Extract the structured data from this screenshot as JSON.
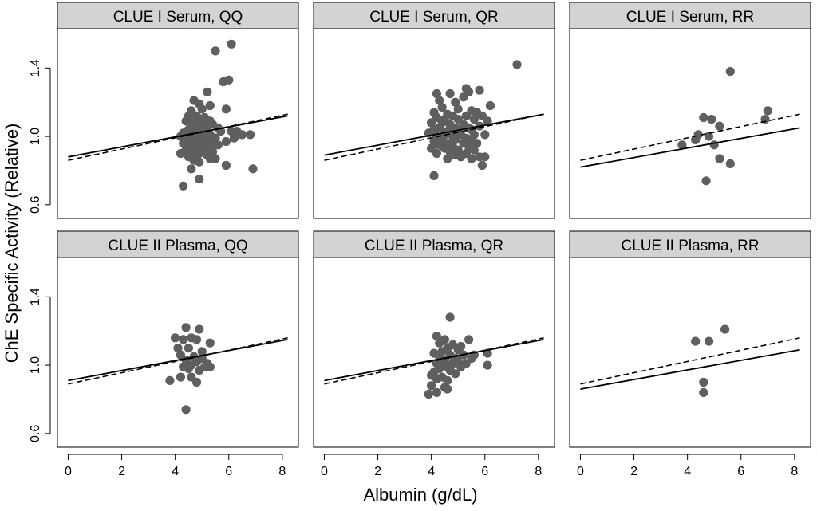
{
  "chart_data": {
    "type": "scatter",
    "xlabel": "Albumin (g/dL)",
    "ylabel": "ChE Specific Activity (Relative)",
    "xlim": [
      -0.4,
      8.6
    ],
    "ylim": [
      0.52,
      1.63
    ],
    "xticks": [
      0,
      2,
      4,
      6,
      8
    ],
    "yticks": [
      0.6,
      1.0,
      1.4
    ],
    "ytick_labels": [
      "0.6",
      "1.0",
      "1.4"
    ],
    "colors": {
      "points": "#5f5f5f",
      "strip": "#d3d3d3",
      "lines": "#000000"
    },
    "legend": "none",
    "panels": [
      {
        "title": "CLUE I Serum, QQ",
        "solid": {
          "x": [
            0,
            8.2
          ],
          "y": [
            0.88,
            1.12
          ]
        },
        "dashed": {
          "x": [
            0,
            8.2
          ],
          "y": [
            0.86,
            1.13
          ]
        },
        "points": [
          [
            5.5,
            1.5
          ],
          [
            6.1,
            1.54
          ],
          [
            5.8,
            1.32
          ],
          [
            6.0,
            1.33
          ],
          [
            5.2,
            1.26
          ],
          [
            4.7,
            1.21
          ],
          [
            4.9,
            1.19
          ],
          [
            5.0,
            1.16
          ],
          [
            4.6,
            1.15
          ],
          [
            5.3,
            1.18
          ],
          [
            5.9,
            1.16
          ],
          [
            4.5,
            1.12
          ],
          [
            4.8,
            1.12
          ],
          [
            5.1,
            1.11
          ],
          [
            5.3,
            1.09
          ],
          [
            4.4,
            1.09
          ],
          [
            4.7,
            1.08
          ],
          [
            5.0,
            1.08
          ],
          [
            5.4,
            1.07
          ],
          [
            4.9,
            1.06
          ],
          [
            5.2,
            1.06
          ],
          [
            4.6,
            1.05
          ],
          [
            4.8,
            1.05
          ],
          [
            5.6,
            1.05
          ],
          [
            4.5,
            1.04
          ],
          [
            4.9,
            1.03
          ],
          [
            5.1,
            1.03
          ],
          [
            5.7,
            1.03
          ],
          [
            6.1,
            1.03
          ],
          [
            6.3,
            1.03
          ],
          [
            4.3,
            1.02
          ],
          [
            4.6,
            1.02
          ],
          [
            4.8,
            1.01
          ],
          [
            5.0,
            1.01
          ],
          [
            5.3,
            1.01
          ],
          [
            6.5,
            1.01
          ],
          [
            6.8,
            1.01
          ],
          [
            4.2,
            1.0
          ],
          [
            4.5,
            1.0
          ],
          [
            4.7,
            1.0
          ],
          [
            5.0,
            0.99
          ],
          [
            5.2,
            0.99
          ],
          [
            5.5,
            0.99
          ],
          [
            6.2,
            0.99
          ],
          [
            4.4,
            0.98
          ],
          [
            4.6,
            0.98
          ],
          [
            4.9,
            0.97
          ],
          [
            5.1,
            0.97
          ],
          [
            5.4,
            0.97
          ],
          [
            5.9,
            0.97
          ],
          [
            4.3,
            0.96
          ],
          [
            4.7,
            0.96
          ],
          [
            5.0,
            0.95
          ],
          [
            5.3,
            0.95
          ],
          [
            5.6,
            0.95
          ],
          [
            4.5,
            0.94
          ],
          [
            4.8,
            0.93
          ],
          [
            5.1,
            0.93
          ],
          [
            4.4,
            0.92
          ],
          [
            4.7,
            0.92
          ],
          [
            5.0,
            0.91
          ],
          [
            5.4,
            0.91
          ],
          [
            4.2,
            0.9
          ],
          [
            4.6,
            0.9
          ],
          [
            4.9,
            0.9
          ],
          [
            5.2,
            0.89
          ],
          [
            4.5,
            0.88
          ],
          [
            4.8,
            0.88
          ],
          [
            5.3,
            0.87
          ],
          [
            4.7,
            0.86
          ],
          [
            5.5,
            0.87
          ],
          [
            4.9,
            0.85
          ],
          [
            5.9,
            0.83
          ],
          [
            4.6,
            0.81
          ],
          [
            6.9,
            0.81
          ],
          [
            4.9,
            0.75
          ],
          [
            4.3,
            0.71
          ]
        ]
      },
      {
        "title": "CLUE I Serum, QR",
        "solid": {
          "x": [
            0,
            8.2
          ],
          "y": [
            0.89,
            1.13
          ]
        },
        "dashed": {
          "x": [
            0,
            8.2
          ],
          "y": [
            0.86,
            1.13
          ]
        },
        "points": [
          [
            7.2,
            1.42
          ],
          [
            5.3,
            1.28
          ],
          [
            5.4,
            1.26
          ],
          [
            5.8,
            1.27
          ],
          [
            4.2,
            1.25
          ],
          [
            4.7,
            1.25
          ],
          [
            5.2,
            1.23
          ],
          [
            4.3,
            1.21
          ],
          [
            4.9,
            1.2
          ],
          [
            6.2,
            1.18
          ],
          [
            4.4,
            1.17
          ],
          [
            5.0,
            1.16
          ],
          [
            5.5,
            1.15
          ],
          [
            5.7,
            1.14
          ],
          [
            4.1,
            1.14
          ],
          [
            4.6,
            1.13
          ],
          [
            4.8,
            1.12
          ],
          [
            5.3,
            1.12
          ],
          [
            5.9,
            1.12
          ],
          [
            4.2,
            1.11
          ],
          [
            4.5,
            1.1
          ],
          [
            5.0,
            1.1
          ],
          [
            5.6,
            1.1
          ],
          [
            6.1,
            1.09
          ],
          [
            4.0,
            1.08
          ],
          [
            4.4,
            1.08
          ],
          [
            4.7,
            1.07
          ],
          [
            5.2,
            1.07
          ],
          [
            5.8,
            1.06
          ],
          [
            4.3,
            1.05
          ],
          [
            4.9,
            1.05
          ],
          [
            5.4,
            1.05
          ],
          [
            5.5,
            1.04
          ],
          [
            4.1,
            1.04
          ],
          [
            4.6,
            1.03
          ],
          [
            5.0,
            1.03
          ],
          [
            3.9,
            1.02
          ],
          [
            4.5,
            1.01
          ],
          [
            5.1,
            1.01
          ],
          [
            5.6,
            1.01
          ],
          [
            6.0,
            1.01
          ],
          [
            4.2,
            1.0
          ],
          [
            4.8,
            1.0
          ],
          [
            5.3,
            0.99
          ],
          [
            4.4,
            0.98
          ],
          [
            4.9,
            0.98
          ],
          [
            5.5,
            0.97
          ],
          [
            4.1,
            0.97
          ],
          [
            4.6,
            0.96
          ],
          [
            5.2,
            0.96
          ],
          [
            5.7,
            0.96
          ],
          [
            4.3,
            0.95
          ],
          [
            4.8,
            0.94
          ],
          [
            5.4,
            0.94
          ],
          [
            4.0,
            0.93
          ],
          [
            4.5,
            0.93
          ],
          [
            5.0,
            0.92
          ],
          [
            5.6,
            0.92
          ],
          [
            4.7,
            0.91
          ],
          [
            5.3,
            0.9
          ],
          [
            4.2,
            0.9
          ],
          [
            4.9,
            0.89
          ],
          [
            5.8,
            0.88
          ],
          [
            5.1,
            0.88
          ],
          [
            6.0,
            0.88
          ],
          [
            4.6,
            0.87
          ],
          [
            5.5,
            0.87
          ],
          [
            5.9,
            0.83
          ],
          [
            4.1,
            0.77
          ]
        ]
      },
      {
        "title": "CLUE I Serum, RR",
        "solid": {
          "x": [
            0,
            8.2
          ],
          "y": [
            0.82,
            1.05
          ]
        },
        "dashed": {
          "x": [
            0,
            8.2
          ],
          "y": [
            0.86,
            1.13
          ]
        },
        "points": [
          [
            5.6,
            1.38
          ],
          [
            4.6,
            1.11
          ],
          [
            4.9,
            1.1
          ],
          [
            7.0,
            1.15
          ],
          [
            6.9,
            1.1
          ],
          [
            5.2,
            1.06
          ],
          [
            4.4,
            1.01
          ],
          [
            4.8,
            1.0
          ],
          [
            4.3,
            0.98
          ],
          [
            3.8,
            0.95
          ],
          [
            5.0,
            0.95
          ],
          [
            5.2,
            0.87
          ],
          [
            5.6,
            0.84
          ],
          [
            4.7,
            0.74
          ]
        ]
      },
      {
        "title": "CLUE II Plasma, QQ",
        "solid": {
          "x": [
            0,
            8.2
          ],
          "y": [
            0.91,
            1.15
          ]
        },
        "dashed": {
          "x": [
            0,
            8.2
          ],
          "y": [
            0.89,
            1.16
          ]
        },
        "points": [
          [
            4.4,
            1.22
          ],
          [
            4.9,
            1.21
          ],
          [
            4.0,
            1.16
          ],
          [
            4.3,
            1.15
          ],
          [
            4.6,
            1.16
          ],
          [
            4.8,
            1.15
          ],
          [
            5.3,
            1.13
          ],
          [
            4.1,
            1.1
          ],
          [
            4.5,
            1.1
          ],
          [
            5.0,
            1.08
          ],
          [
            4.2,
            1.06
          ],
          [
            4.7,
            1.05
          ],
          [
            5.0,
            1.04
          ],
          [
            4.4,
            1.03
          ],
          [
            4.8,
            1.02
          ],
          [
            5.2,
            1.01
          ],
          [
            4.6,
            1.0
          ],
          [
            4.3,
            0.99
          ],
          [
            5.1,
            0.99
          ],
          [
            5.3,
            0.99
          ],
          [
            4.5,
            0.98
          ],
          [
            4.9,
            0.97
          ],
          [
            4.2,
            0.93
          ],
          [
            4.6,
            0.93
          ],
          [
            3.8,
            0.91
          ],
          [
            4.8,
            0.9
          ],
          [
            4.4,
            0.74
          ]
        ]
      },
      {
        "title": "CLUE II Plasma, QR",
        "solid": {
          "x": [
            0,
            8.2
          ],
          "y": [
            0.91,
            1.15
          ]
        },
        "dashed": {
          "x": [
            0,
            8.2
          ],
          "y": [
            0.89,
            1.16
          ]
        },
        "points": [
          [
            4.7,
            1.28
          ],
          [
            4.2,
            1.17
          ],
          [
            4.5,
            1.15
          ],
          [
            5.4,
            1.15
          ],
          [
            4.3,
            1.13
          ],
          [
            4.8,
            1.12
          ],
          [
            5.1,
            1.11
          ],
          [
            4.6,
            1.1
          ],
          [
            5.0,
            1.09
          ],
          [
            4.4,
            1.08
          ],
          [
            4.1,
            1.07
          ],
          [
            4.7,
            1.06
          ],
          [
            5.2,
            1.06
          ],
          [
            5.6,
            1.06
          ],
          [
            6.1,
            1.07
          ],
          [
            4.3,
            1.05
          ],
          [
            4.9,
            1.04
          ],
          [
            5.5,
            1.04
          ],
          [
            4.5,
            1.03
          ],
          [
            5.0,
            1.02
          ],
          [
            4.2,
            1.01
          ],
          [
            4.8,
            1.01
          ],
          [
            5.3,
            1.01
          ],
          [
            4.4,
            1.0
          ],
          [
            4.6,
            0.99
          ],
          [
            5.1,
            0.99
          ],
          [
            6.1,
            1.0
          ],
          [
            4.3,
            0.98
          ],
          [
            4.7,
            0.97
          ],
          [
            4.1,
            0.96
          ],
          [
            4.9,
            0.95
          ],
          [
            4.0,
            0.94
          ],
          [
            4.4,
            0.93
          ],
          [
            4.2,
            0.92
          ],
          [
            4.6,
            0.91
          ],
          [
            4.0,
            0.88
          ],
          [
            4.5,
            0.87
          ],
          [
            4.6,
            0.86
          ],
          [
            4.2,
            0.84
          ],
          [
            3.9,
            0.83
          ]
        ]
      },
      {
        "title": "CLUE II Plasma, RR",
        "solid": {
          "x": [
            0,
            8.2
          ],
          "y": [
            0.86,
            1.09
          ]
        },
        "dashed": {
          "x": [
            0,
            8.2
          ],
          "y": [
            0.89,
            1.16
          ]
        },
        "points": [
          [
            5.4,
            1.21
          ],
          [
            4.3,
            1.14
          ],
          [
            4.8,
            1.14
          ],
          [
            4.6,
            0.9
          ],
          [
            4.6,
            0.84
          ]
        ]
      }
    ]
  }
}
